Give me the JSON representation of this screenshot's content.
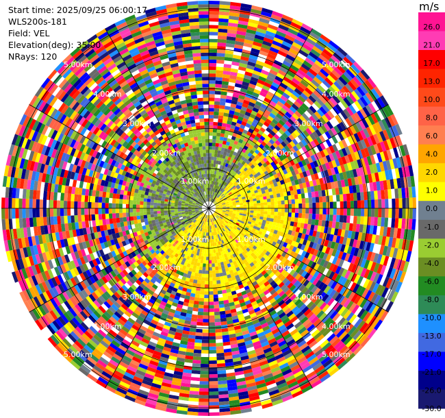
{
  "header": {
    "start_time": "Start time: 2025/09/25 06:00:17",
    "instrument": "WLS200s-181",
    "field": "Field: VEL",
    "elevation": "Elevation(deg): 35.00",
    "nrays": "NRays: 120"
  },
  "colorbar": {
    "unit": "m/s",
    "ticks": [
      "26.0",
      "21.0",
      "17.0",
      "13.0",
      "10.0",
      "8.0",
      "6.0",
      "4.0",
      "2.0",
      "1.0",
      "0.0",
      "-1.0",
      "-2.0",
      "-4.0",
      "-6.0",
      "-8.0",
      "-10.0",
      "-13.0",
      "-17.0",
      "-21.0",
      "-26.0",
      "-30.0"
    ],
    "colors": [
      "#ff1493",
      "#ff3cb4",
      "#ff0000",
      "#ff2400",
      "#ff4a1a",
      "#ff6347",
      "#ff7f50",
      "#ffa500",
      "#ffd700",
      "#ffff00",
      "#708090",
      "#696969",
      "#9acd32",
      "#6b8e23",
      "#228b22",
      "#2e8b57",
      "#1e90ff",
      "#4169e1",
      "#0000ff",
      "#00008b",
      "#191970"
    ]
  },
  "chart_data": {
    "type": "heatmap",
    "projection": "polar-ppi",
    "field": "VEL",
    "units": "m/s",
    "nrays": 120,
    "elevation_deg": 35.0,
    "range_ring_labels": [
      "1.00km",
      "2.00km",
      "3.00km",
      "4.00km",
      "5.00km"
    ],
    "ring_label_rows": [
      [
        "5.00km",
        "5.00km"
      ],
      [
        "4.00km",
        "4.00km"
      ],
      [
        "3.00km",
        "3.00km"
      ],
      [
        "2.00km",
        "2.00km"
      ],
      [
        "1.00km",
        "1.00km"
      ],
      [
        "1.00km",
        "1.00km"
      ],
      [
        "2.00km",
        "2.00km"
      ],
      [
        "3.00km",
        "3.00km"
      ],
      [
        "4.00km",
        "4.00km"
      ],
      [
        "5.00km",
        "5.00km"
      ]
    ],
    "vlim": [
      -30.0,
      30.0
    ],
    "pattern": "near range shows coherent dipole: positive velocities (yellow, ~1-6 m/s) to the east/south-east, negative (green/grey, ~-2 to 0 m/s) to the north-west; beyond ~2 km the field is noise across the full colour scale"
  }
}
